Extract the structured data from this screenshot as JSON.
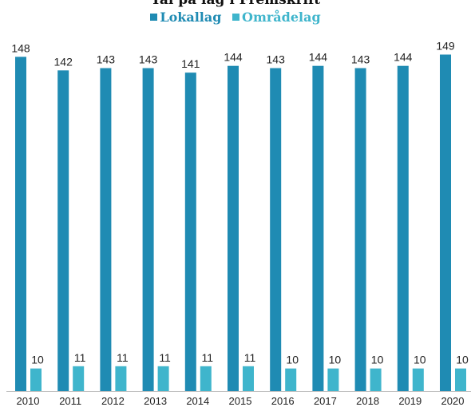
{
  "chart_data": {
    "type": "bar",
    "title": "Tal på lag i Fremskrift",
    "categories": [
      "2010",
      "2011",
      "2012",
      "2013",
      "2014",
      "2015",
      "2016",
      "2017",
      "2018",
      "2019",
      "2020"
    ],
    "series": [
      {
        "name": "Lokallag",
        "color": "#1f8bb3",
        "values": [
          148,
          142,
          143,
          143,
          141,
          144,
          143,
          144,
          143,
          144,
          149
        ]
      },
      {
        "name": "Områdelag",
        "color": "#3fb5cc",
        "values": [
          10,
          11,
          11,
          11,
          11,
          11,
          10,
          10,
          10,
          10,
          10
        ]
      }
    ],
    "ylim": [
      0,
      152
    ],
    "legend": "top-center",
    "grid": false
  }
}
